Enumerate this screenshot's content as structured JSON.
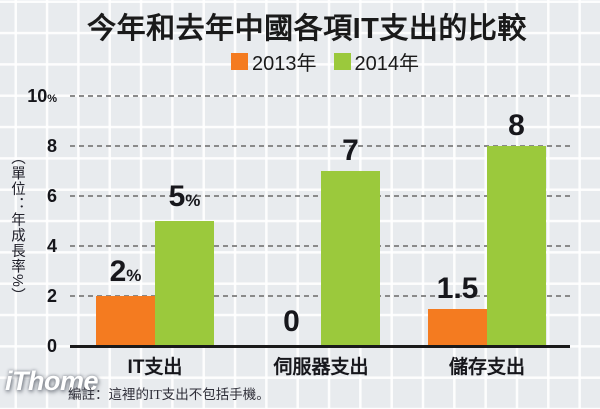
{
  "title": "今年和去年中國各項IT支出的比較",
  "legend": {
    "items": [
      {
        "label": "2013年",
        "color": "#f47b20"
      },
      {
        "label": "2014年",
        "color": "#9bc93c"
      }
    ]
  },
  "y_axis": {
    "unit_label": "（單位：年成長率%）"
  },
  "footer": {
    "logo": "iThome",
    "note": "編註：這裡的IT支出不包括手機。"
  },
  "colors": {
    "background": "#e8ebee",
    "grid_white": "#ffffff",
    "dashed_gridline": "#8a8a8a",
    "axis": "#1a1a1a",
    "text": "#17171c",
    "orange_2013": "#f47b20",
    "green_2014": "#9bc93c"
  },
  "chart_data": {
    "type": "bar",
    "title": "今年和去年中國各項IT支出的比較",
    "categories": [
      "IT支出",
      "伺服器支出",
      "儲存支出"
    ],
    "series": [
      {
        "name": "2013年",
        "color": "#f47b20",
        "values": [
          2,
          0,
          1.5
        ],
        "labels": [
          {
            "text": "2",
            "suffix": "%"
          },
          {
            "text": "0",
            "suffix": ""
          },
          {
            "text": "1.5",
            "suffix": ""
          }
        ]
      },
      {
        "name": "2014年",
        "color": "#9bc93c",
        "values": [
          5,
          7,
          8
        ],
        "labels": [
          {
            "text": "5",
            "suffix": "%"
          },
          {
            "text": "7",
            "suffix": ""
          },
          {
            "text": "8",
            "suffix": ""
          }
        ]
      }
    ],
    "ylabel": "單位：年成長率%",
    "ylim": [
      0,
      10
    ],
    "grid": "dashed horizontal at even values",
    "legend_position": "top center",
    "y_ticks": [
      {
        "value": 10,
        "label": "10",
        "suffix": "%"
      },
      {
        "value": 8,
        "label": "8",
        "suffix": ""
      },
      {
        "value": 6,
        "label": "6",
        "suffix": ""
      },
      {
        "value": 4,
        "label": "4",
        "suffix": ""
      },
      {
        "value": 2,
        "label": "2",
        "suffix": ""
      },
      {
        "value": 0,
        "label": "0",
        "suffix": ""
      }
    ]
  }
}
